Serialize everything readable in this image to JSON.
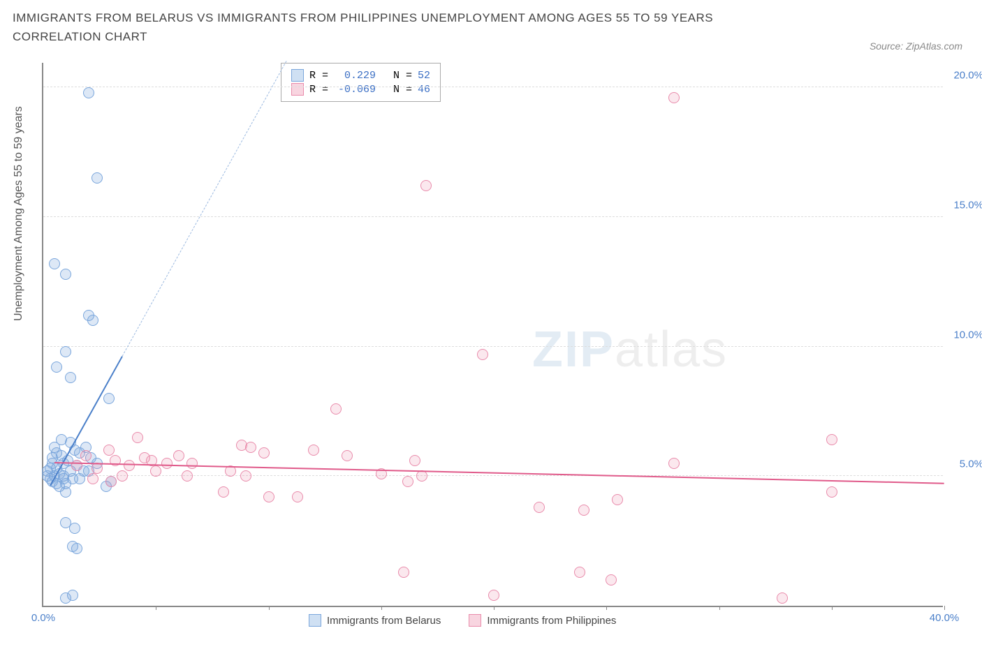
{
  "title": "IMMIGRANTS FROM BELARUS VS IMMIGRANTS FROM PHILIPPINES UNEMPLOYMENT AMONG AGES 55 TO 59 YEARS CORRELATION CHART",
  "source_label": "Source: ZipAtlas.com",
  "ylabel": "Unemployment Among Ages 55 to 59 years",
  "watermark_prefix": "ZIP",
  "watermark_suffix": "atlas",
  "chart": {
    "type": "scatter",
    "xlim": [
      0,
      40
    ],
    "ylim": [
      0,
      21
    ],
    "yticks": [
      5,
      10,
      15,
      20
    ],
    "ytick_labels": [
      "5.0%",
      "10.0%",
      "15.0%",
      "20.0%"
    ],
    "xticks": [
      0,
      5,
      10,
      15,
      20,
      25,
      30,
      35,
      40
    ],
    "xtick_labels_shown": {
      "0": "0.0%",
      "40": "40.0%"
    },
    "grid_color": "#dddddd",
    "background_color": "#ffffff",
    "marker_radius": 8,
    "marker_stroke_width": 1.5,
    "series": [
      {
        "name": "Immigrants from Belarus",
        "color_fill": "rgba(120,165,220,0.25)",
        "color_stroke": "#7aa6dc",
        "swatch_fill": "#cfe0f3",
        "swatch_border": "#7aa6dc",
        "R": "0.229",
        "N": "52",
        "trend": {
          "x1": 0.3,
          "y1": 4.6,
          "x2_solid": 3.5,
          "y2_solid": 9.6,
          "y2_dash": 21
        },
        "points": [
          [
            2.0,
            19.8
          ],
          [
            2.4,
            16.5
          ],
          [
            0.5,
            13.2
          ],
          [
            1.0,
            12.8
          ],
          [
            1.0,
            9.8
          ],
          [
            2.0,
            11.2
          ],
          [
            2.2,
            11.0
          ],
          [
            1.2,
            8.8
          ],
          [
            0.6,
            9.2
          ],
          [
            2.9,
            8.0
          ],
          [
            0.5,
            6.1
          ],
          [
            0.8,
            6.4
          ],
          [
            1.2,
            6.3
          ],
          [
            1.4,
            6.0
          ],
          [
            1.1,
            5.6
          ],
          [
            0.4,
            5.5
          ],
          [
            0.6,
            5.3
          ],
          [
            0.9,
            5.5
          ],
          [
            0.3,
            5.3
          ],
          [
            0.5,
            5.0
          ],
          [
            0.7,
            5.1
          ],
          [
            0.9,
            4.9
          ],
          [
            1.2,
            5.2
          ],
          [
            1.5,
            5.4
          ],
          [
            1.0,
            4.7
          ],
          [
            0.6,
            4.7
          ],
          [
            0.4,
            4.8
          ],
          [
            0.3,
            4.9
          ],
          [
            0.2,
            5.0
          ],
          [
            0.2,
            5.2
          ],
          [
            1.0,
            4.4
          ],
          [
            2.8,
            4.6
          ],
          [
            3.0,
            4.8
          ],
          [
            1.0,
            3.2
          ],
          [
            1.4,
            3.0
          ],
          [
            1.3,
            2.3
          ],
          [
            1.5,
            2.2
          ],
          [
            1.0,
            0.3
          ],
          [
            1.3,
            0.4
          ],
          [
            0.8,
            5.8
          ],
          [
            1.6,
            5.9
          ],
          [
            2.1,
            5.7
          ],
          [
            2.4,
            5.5
          ],
          [
            1.8,
            5.2
          ],
          [
            0.4,
            5.7
          ],
          [
            0.6,
            5.9
          ],
          [
            1.9,
            6.1
          ],
          [
            1.3,
            4.9
          ],
          [
            0.9,
            5.0
          ],
          [
            0.7,
            4.6
          ],
          [
            1.6,
            4.9
          ],
          [
            2.0,
            5.2
          ]
        ]
      },
      {
        "name": "Immigrants from Philippines",
        "color_fill": "rgba(235,140,170,0.20)",
        "color_stroke": "#e98bab",
        "swatch_fill": "#f8d5e0",
        "swatch_border": "#e98bab",
        "R": "-0.069",
        "N": "46",
        "trend": {
          "x1": 0.5,
          "y1": 5.5,
          "x2_solid": 40,
          "y2_solid": 4.7
        },
        "points": [
          [
            28.0,
            19.6
          ],
          [
            17.0,
            16.2
          ],
          [
            19.5,
            9.7
          ],
          [
            13.0,
            7.6
          ],
          [
            35.0,
            6.4
          ],
          [
            28.0,
            5.5
          ],
          [
            35.0,
            4.4
          ],
          [
            32.8,
            0.3
          ],
          [
            22.0,
            3.8
          ],
          [
            24.0,
            3.7
          ],
          [
            25.5,
            4.1
          ],
          [
            25.2,
            1.0
          ],
          [
            23.8,
            1.3
          ],
          [
            20.0,
            0.4
          ],
          [
            16.2,
            4.8
          ],
          [
            16.8,
            5.0
          ],
          [
            16.5,
            5.6
          ],
          [
            16.0,
            1.3
          ],
          [
            15.0,
            5.1
          ],
          [
            13.5,
            5.8
          ],
          [
            12.0,
            6.0
          ],
          [
            11.3,
            4.2
          ],
          [
            10.0,
            4.2
          ],
          [
            9.8,
            5.9
          ],
          [
            9.0,
            5.0
          ],
          [
            9.2,
            6.1
          ],
          [
            8.8,
            6.2
          ],
          [
            8.3,
            5.2
          ],
          [
            8.0,
            4.4
          ],
          [
            6.4,
            5.0
          ],
          [
            6.6,
            5.5
          ],
          [
            5.5,
            5.5
          ],
          [
            5.0,
            5.2
          ],
          [
            4.8,
            5.6
          ],
          [
            4.5,
            5.7
          ],
          [
            4.2,
            6.5
          ],
          [
            3.8,
            5.4
          ],
          [
            3.5,
            5.0
          ],
          [
            3.2,
            5.6
          ],
          [
            2.9,
            6.0
          ],
          [
            2.4,
            5.3
          ],
          [
            1.9,
            5.8
          ],
          [
            1.5,
            5.4
          ],
          [
            2.2,
            4.9
          ],
          [
            3.0,
            4.8
          ],
          [
            6.0,
            5.8
          ]
        ]
      }
    ]
  },
  "legend_top": {
    "R_label": "R =",
    "N_label": "N =",
    "value_color": "#3b6fc4"
  },
  "bottom_legend": [
    "Immigrants from Belarus",
    "Immigrants from Philippines"
  ]
}
